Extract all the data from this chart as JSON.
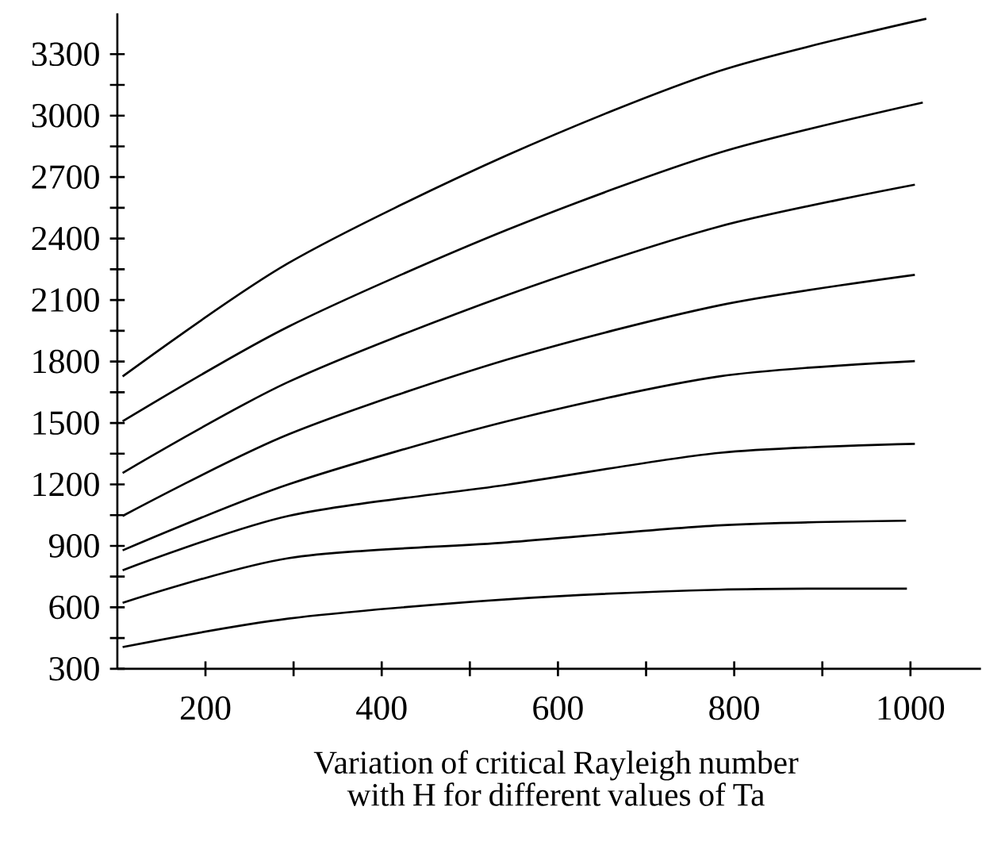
{
  "chart_data": {
    "type": "line",
    "title": "Variation of critical Rayleigh number with H for different values of Ta",
    "xlim": [
      100,
      1080
    ],
    "ylim": [
      300,
      3500
    ],
    "xticks": [
      200,
      {
        "value": 300,
        "label": null
      },
      400,
      {
        "value": 500,
        "label": null
      },
      600,
      {
        "value": 700,
        "label": null
      },
      800,
      {
        "value": 900,
        "label": null
      },
      1000
    ],
    "yticks": [
      300,
      {
        "value": 450,
        "label": null
      },
      600,
      {
        "value": 750,
        "label": null
      },
      900,
      {
        "value": 1050,
        "label": null
      },
      1200,
      {
        "value": 1350,
        "label": null
      },
      1500,
      {
        "value": 1650,
        "label": null
      },
      1800,
      {
        "value": 1950,
        "label": null
      },
      2100,
      {
        "value": 2250,
        "label": null
      },
      2400,
      {
        "value": 2550,
        "label": null
      },
      2700,
      {
        "value": 2850,
        "label": null
      },
      3000,
      {
        "value": 3150,
        "label": null
      },
      3300
    ],
    "grid": false,
    "marker": "none",
    "line_style": "solid",
    "series": [
      {
        "color": "#000000",
        "x": [
          106,
          294,
          542,
          783,
          1018
        ],
        "values": [
          1727,
          2280,
          2806,
          3218,
          3473
        ]
      },
      {
        "color": "#000000",
        "x": [
          106,
          294,
          542,
          783,
          1014
        ],
        "values": [
          1508,
          1970,
          2442,
          2819,
          3064
        ]
      },
      {
        "color": "#000000",
        "x": [
          106,
          294,
          542,
          783,
          1005
        ],
        "values": [
          1256,
          1700,
          2124,
          2459,
          2663
        ]
      },
      {
        "color": "#000000",
        "x": [
          106,
          294,
          542,
          783,
          1005
        ],
        "values": [
          1046,
          1444,
          1809,
          2074,
          2223
        ]
      },
      {
        "color": "#000000",
        "x": [
          106,
          294,
          542,
          783,
          1005
        ],
        "values": [
          878,
          1200,
          1508,
          1727,
          1802
        ]
      },
      {
        "color": "#000000",
        "x": [
          106,
          294,
          542,
          783,
          1005
        ],
        "values": [
          781,
          1046,
          1198,
          1354,
          1398
        ]
      },
      {
        "color": "#000000",
        "x": [
          106,
          294,
          542,
          783,
          995
        ],
        "values": [
          622,
          840,
          917,
          1000,
          1023
        ]
      },
      {
        "color": "#000000",
        "x": [
          106,
          294,
          542,
          783,
          996
        ],
        "values": [
          406,
          545,
          639,
          686,
          691
        ]
      }
    ]
  }
}
